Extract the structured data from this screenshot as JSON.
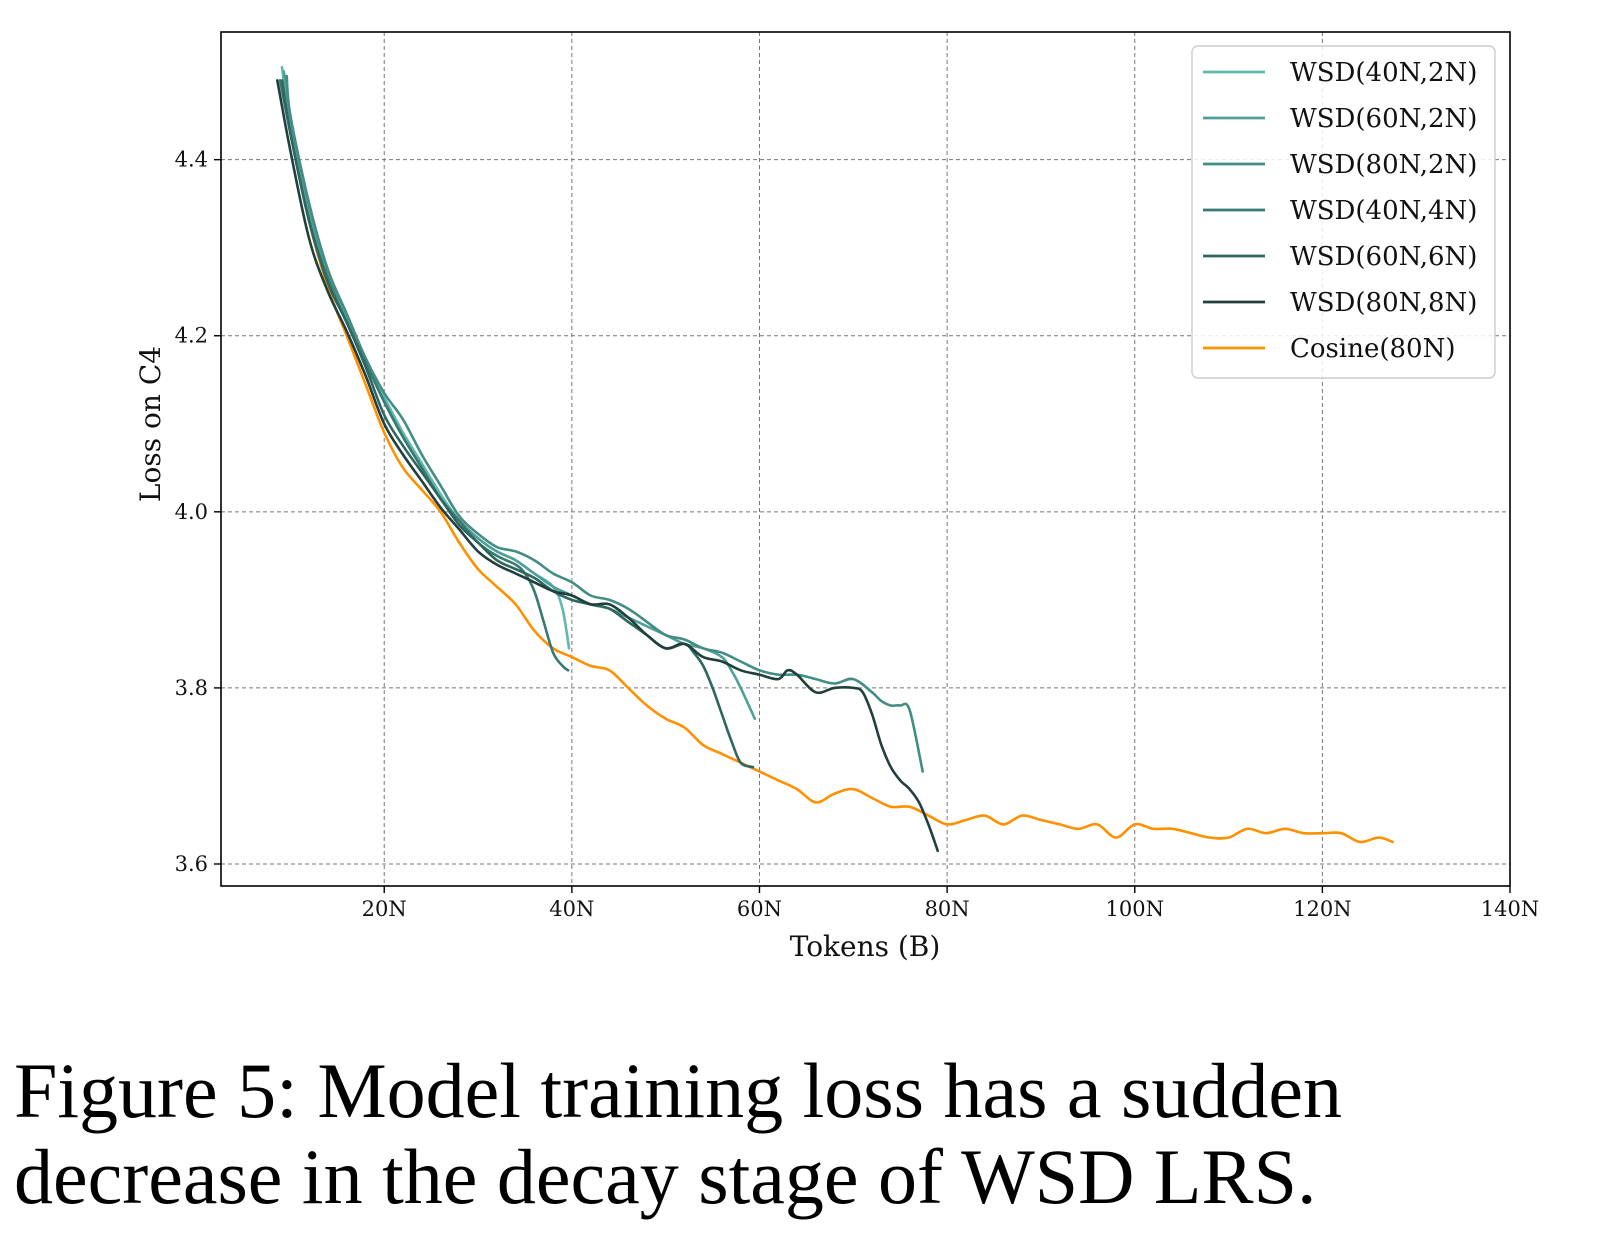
{
  "caption": "Figure 5: Model training loss has a sudden decrease in the decay stage of WSD LRS.",
  "chart_data": {
    "type": "line",
    "title": "",
    "xlabel": "Tokens (B)",
    "ylabel": "Loss on C4",
    "xlim": [
      2.6,
      140
    ],
    "ylim": [
      3.575,
      4.545
    ],
    "xticks": [
      20,
      40,
      60,
      80,
      100,
      120,
      140
    ],
    "xtick_labels": [
      "20N",
      "40N",
      "60N",
      "80N",
      "100N",
      "120N",
      "140N"
    ],
    "yticks": [
      3.6,
      3.8,
      4.0,
      4.2,
      4.4
    ],
    "ytick_labels": [
      "3.6",
      "3.8",
      "4.0",
      "4.2",
      "4.4"
    ],
    "grid": true,
    "legend_position": "top-right",
    "series": [
      {
        "name": "WSD(40N,2N)",
        "color": "#5fb8ac",
        "x": [
          9.1,
          10,
          12,
          14,
          16,
          18,
          20,
          22,
          24,
          26,
          28,
          30,
          32,
          34,
          36,
          38,
          39,
          39.7
        ],
        "y": [
          4.505,
          4.44,
          4.34,
          4.27,
          4.22,
          4.17,
          4.13,
          4.09,
          4.055,
          4.02,
          3.99,
          3.97,
          3.955,
          3.945,
          3.93,
          3.915,
          3.89,
          3.845
        ]
      },
      {
        "name": "WSD(60N,2N)",
        "color": "#4fa096",
        "x": [
          9.3,
          10,
          12,
          14,
          16,
          18,
          20,
          22,
          24,
          26,
          28,
          30,
          32,
          34,
          36,
          38,
          40,
          42,
          44,
          46,
          48,
          50,
          52,
          54,
          56,
          57,
          58,
          59.5
        ],
        "y": [
          4.5,
          4.44,
          4.34,
          4.27,
          4.22,
          4.17,
          4.125,
          4.085,
          4.05,
          4.015,
          3.99,
          3.97,
          3.955,
          3.945,
          3.93,
          3.915,
          3.905,
          3.895,
          3.89,
          3.88,
          3.87,
          3.86,
          3.85,
          3.845,
          3.835,
          3.82,
          3.8,
          3.765
        ]
      },
      {
        "name": "WSD(80N,2N)",
        "color": "#438d85",
        "x": [
          9.6,
          10,
          12,
          14,
          16,
          18,
          20,
          22,
          24,
          26,
          28,
          30,
          32,
          34,
          36,
          38,
          40,
          42,
          44,
          46,
          48,
          50,
          52,
          54,
          56,
          58,
          60,
          62,
          64,
          66,
          68,
          70,
          72,
          73,
          74,
          75,
          76,
          77.4
        ],
        "y": [
          4.495,
          4.45,
          4.35,
          4.275,
          4.225,
          4.175,
          4.135,
          4.105,
          4.065,
          4.03,
          3.995,
          3.975,
          3.96,
          3.955,
          3.945,
          3.93,
          3.92,
          3.905,
          3.9,
          3.89,
          3.875,
          3.86,
          3.855,
          3.845,
          3.84,
          3.83,
          3.82,
          3.815,
          3.815,
          3.81,
          3.805,
          3.81,
          3.795,
          3.785,
          3.78,
          3.78,
          3.775,
          3.705
        ]
      },
      {
        "name": "WSD(40N,4N)",
        "color": "#387a72",
        "x": [
          8.9,
          10,
          12,
          14,
          16,
          18,
          20,
          22,
          24,
          26,
          28,
          30,
          32,
          34,
          35,
          36,
          37,
          38,
          39,
          39.6
        ],
        "y": [
          4.49,
          4.43,
          4.33,
          4.265,
          4.215,
          4.17,
          4.125,
          4.085,
          4.05,
          4.015,
          3.99,
          3.965,
          3.95,
          3.94,
          3.93,
          3.91,
          3.875,
          3.84,
          3.825,
          3.82
        ]
      },
      {
        "name": "WSD(60N,6N)",
        "color": "#2e6660",
        "x": [
          9.1,
          10,
          12,
          14,
          16,
          18,
          20,
          22,
          24,
          26,
          28,
          30,
          32,
          34,
          36,
          38,
          40,
          42,
          44,
          46,
          48,
          50,
          52,
          53,
          54,
          55,
          56,
          57,
          58,
          59.3
        ],
        "y": [
          4.49,
          4.43,
          4.33,
          4.26,
          4.215,
          4.165,
          4.11,
          4.075,
          4.045,
          4.015,
          3.985,
          3.965,
          3.945,
          3.935,
          3.925,
          3.91,
          3.9,
          3.895,
          3.89,
          3.875,
          3.86,
          3.845,
          3.85,
          3.84,
          3.825,
          3.8,
          3.77,
          3.74,
          3.715,
          3.71
        ]
      },
      {
        "name": "WSD(80N,8N)",
        "color": "#213f3c",
        "x": [
          8.6,
          10,
          12,
          14,
          16,
          18,
          20,
          22,
          24,
          26,
          28,
          30,
          32,
          34,
          36,
          38,
          40,
          42,
          44,
          46,
          48,
          50,
          52,
          54,
          56,
          58,
          60,
          62,
          63,
          64,
          66,
          68,
          70,
          71,
          72,
          73,
          74,
          75,
          76,
          77,
          78,
          79
        ],
        "y": [
          4.49,
          4.41,
          4.31,
          4.25,
          4.205,
          4.155,
          4.1,
          4.065,
          4.035,
          4.005,
          3.98,
          3.955,
          3.94,
          3.93,
          3.92,
          3.91,
          3.905,
          3.895,
          3.895,
          3.88,
          3.86,
          3.845,
          3.85,
          3.835,
          3.83,
          3.82,
          3.815,
          3.81,
          3.82,
          3.815,
          3.795,
          3.8,
          3.8,
          3.795,
          3.77,
          3.735,
          3.71,
          3.695,
          3.685,
          3.67,
          3.645,
          3.615
        ]
      },
      {
        "name": "Cosine(80N)",
        "color": "#ff9100",
        "x": [
          9.4,
          10,
          12,
          14,
          16,
          18,
          20,
          22,
          24,
          26,
          28,
          30,
          32,
          34,
          36,
          38,
          40,
          42,
          44,
          46,
          48,
          50,
          52,
          54,
          56,
          58,
          60,
          62,
          64,
          66,
          68,
          70,
          72,
          74,
          76,
          78,
          80,
          82,
          84,
          86,
          88,
          90,
          92,
          94,
          96,
          98,
          100,
          102,
          104,
          106,
          108,
          110,
          112,
          114,
          116,
          118,
          120,
          122,
          124,
          126,
          127.5
        ],
        "y": [
          4.495,
          4.44,
          4.33,
          4.255,
          4.2,
          4.145,
          4.09,
          4.05,
          4.025,
          4.0,
          3.965,
          3.935,
          3.915,
          3.895,
          3.865,
          3.845,
          3.835,
          3.825,
          3.82,
          3.8,
          3.78,
          3.765,
          3.755,
          3.735,
          3.725,
          3.715,
          3.705,
          3.695,
          3.685,
          3.67,
          3.68,
          3.685,
          3.675,
          3.665,
          3.665,
          3.655,
          3.645,
          3.65,
          3.655,
          3.645,
          3.655,
          3.65,
          3.645,
          3.64,
          3.645,
          3.63,
          3.645,
          3.64,
          3.64,
          3.635,
          3.63,
          3.63,
          3.64,
          3.635,
          3.64,
          3.635,
          3.635,
          3.635,
          3.625,
          3.63,
          3.625
        ]
      }
    ]
  }
}
